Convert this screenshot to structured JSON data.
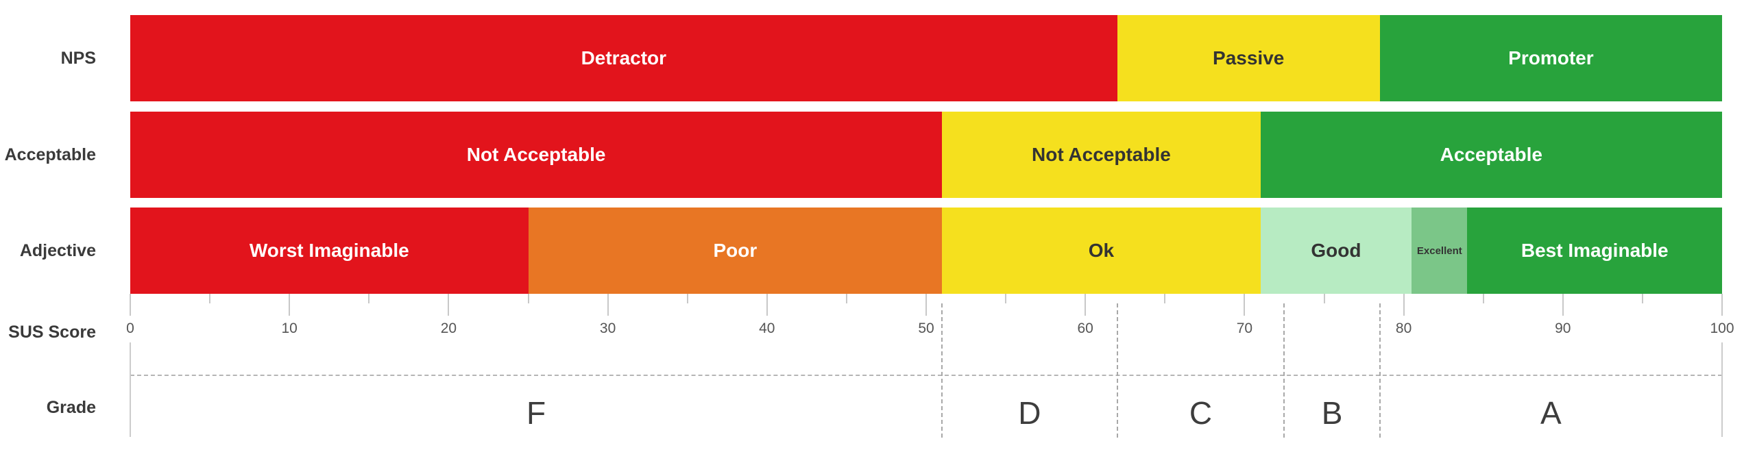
{
  "chart_data": {
    "type": "bar",
    "subtype": "horizontal-stacked-scale-bands",
    "title": "",
    "xlabel": "SUS Score",
    "ylabel": "",
    "xlim": [
      0,
      100
    ],
    "x_major_ticks": [
      0,
      10,
      20,
      30,
      40,
      50,
      60,
      70,
      80,
      90,
      100
    ],
    "x_minor_ticks": [
      5,
      15,
      25,
      35,
      45,
      55,
      65,
      75,
      85,
      95
    ],
    "grid": false,
    "legend": false,
    "rows": [
      {
        "label": "NPS",
        "segments": [
          {
            "label": "Detractor",
            "from": 0,
            "to": 62,
            "color": "#e2141c",
            "text_color": "#ffffff"
          },
          {
            "label": "Passive",
            "from": 62,
            "to": 78.5,
            "color": "#f5e01e",
            "text_color": "#333333"
          },
          {
            "label": "Promoter",
            "from": 78.5,
            "to": 100,
            "color": "#28a33c",
            "text_color": "#ffffff"
          }
        ]
      },
      {
        "label": "Acceptable",
        "segments": [
          {
            "label": "Not Acceptable",
            "from": 0,
            "to": 51,
            "color": "#e2141c",
            "text_color": "#ffffff"
          },
          {
            "label": "Not Acceptable",
            "from": 51,
            "to": 71,
            "color": "#f5e01e",
            "text_color": "#333333"
          },
          {
            "label": "Acceptable",
            "from": 71,
            "to": 100,
            "color": "#28a33c",
            "text_color": "#ffffff"
          }
        ]
      },
      {
        "label": "Adjective",
        "segments": [
          {
            "label": "Worst Imaginable",
            "from": 0,
            "to": 25,
            "color": "#e2141c",
            "text_color": "#ffffff"
          },
          {
            "label": "Poor",
            "from": 25,
            "to": 51,
            "color": "#e87624",
            "text_color": "#ffffff"
          },
          {
            "label": "Ok",
            "from": 51,
            "to": 71,
            "color": "#f5e01e",
            "text_color": "#333333"
          },
          {
            "label": "Good",
            "from": 71,
            "to": 80.5,
            "color": "#b7ebc2",
            "text_color": "#333333"
          },
          {
            "label": "Excellent",
            "from": 80.5,
            "to": 84,
            "color": "#7bc688",
            "text_color": "#333333",
            "small": true
          },
          {
            "label": "Best Imaginable",
            "from": 84,
            "to": 100,
            "color": "#28a33c",
            "text_color": "#ffffff"
          }
        ]
      }
    ],
    "grade_row": {
      "label": "Grade",
      "grades": [
        {
          "label": "F",
          "from": 0,
          "to": 51
        },
        {
          "label": "D",
          "from": 51,
          "to": 62
        },
        {
          "label": "C",
          "from": 62,
          "to": 72.5
        },
        {
          "label": "B",
          "from": 72.5,
          "to": 78.5
        },
        {
          "label": "A",
          "from": 78.5,
          "to": 100
        }
      ],
      "boundaries": [
        51,
        62,
        72.5,
        78.5
      ]
    },
    "colors": {
      "red": "#e2141c",
      "orange": "#e87624",
      "yellow": "#f5e01e",
      "light_green": "#b7ebc2",
      "mid_green": "#7bc688",
      "green": "#28a33c",
      "tick": "#c8c8c8",
      "dashed_line": "#a8a8a8",
      "label_text": "#3a3a3a"
    }
  }
}
